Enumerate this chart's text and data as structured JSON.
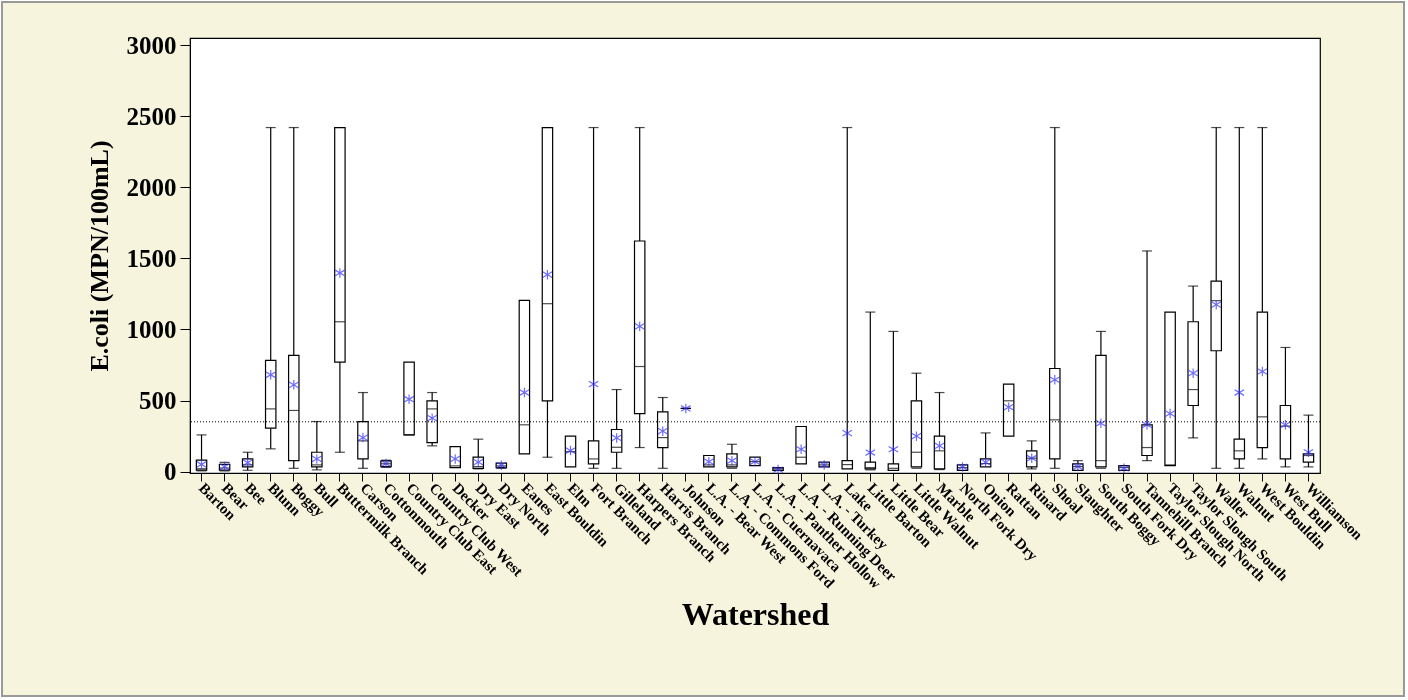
{
  "chart_data": {
    "type": "box",
    "xlabel": "Watershed",
    "ylabel": "E.coli (MPN/100mL)",
    "categories": [
      "Barton",
      "Bear",
      "Bee",
      "Blunn",
      "Boggy",
      "Bull",
      "Buttermilk Branch",
      "Carson",
      "Cottonmouth",
      "Country Club East",
      "Country Club West",
      "Decker",
      "Dry East",
      "Dry North",
      "Eanes",
      "East Bouldin",
      "Elm",
      "Fort Branch",
      "Gilleland",
      "Harpers Branch",
      "Harris Branch",
      "Johnson",
      "L.A. - Bear West",
      "L.A. - Commons Ford",
      "L.A. - Cuernavaca",
      "L.A. - Panther Hollow",
      "L.A. - Running Deer",
      "L.A. - Turkey",
      "Lake",
      "Little Barton",
      "Little Bear",
      "Little Walnut",
      "Marble",
      "North Fork Dry",
      "Onion",
      "Rattan",
      "Rinard",
      "Shoal",
      "Slaughter",
      "South Boggy",
      "South Fork Dry",
      "Tannehill Branch",
      "Taylor Slough North",
      "Taylor Slough South",
      "Waller",
      "Walnut",
      "West Bouldin",
      "West Bull",
      "Williamson"
    ],
    "color": "#000000",
    "boxes": [
      {
        "low": 5,
        "q1": 10,
        "median": 20,
        "q3": 80,
        "high": 258,
        "mean": 50
      },
      {
        "low": 5,
        "q1": 10,
        "median": 25,
        "q3": 50,
        "high": 65,
        "mean": 35
      },
      {
        "low": 9,
        "q1": 33,
        "median": 47,
        "q3": 89,
        "high": 136,
        "mean": 63
      },
      {
        "low": 160,
        "q1": 305,
        "median": 441,
        "q3": 782,
        "high": 2420,
        "mean": 681
      },
      {
        "low": 23,
        "q1": 77,
        "median": 430,
        "q3": 817,
        "high": 2420,
        "mean": 610
      },
      {
        "low": 12,
        "q1": 33,
        "median": 47,
        "q3": 136,
        "high": 352,
        "mean": 89
      },
      {
        "low": 136,
        "q1": 770,
        "median": 1054,
        "q3": 2420,
        "high": 2420,
        "mean": 1397
      },
      {
        "low": 23,
        "q1": 89,
        "median": 216,
        "q3": 352,
        "high": 556,
        "mean": 239
      },
      {
        "low": 30,
        "q1": 35,
        "median": 55,
        "q3": 75,
        "high": 80,
        "mean": 56
      },
      {
        "low": 258,
        "q1": 258,
        "median": 258,
        "q3": 770,
        "high": 770,
        "mean": 509
      },
      {
        "low": 181,
        "q1": 204,
        "median": 441,
        "q3": 498,
        "high": 556,
        "mean": 376
      },
      {
        "low": 28,
        "q1": 28,
        "median": 40,
        "q3": 176,
        "high": 176,
        "mean": 89
      },
      {
        "low": 19,
        "q1": 23,
        "median": 35,
        "q3": 101,
        "high": 228,
        "mean": 66
      },
      {
        "low": 23,
        "q1": 28,
        "median": 40,
        "q3": 59,
        "high": 59,
        "mean": 45
      },
      {
        "low": 124,
        "q1": 124,
        "median": 329,
        "q3": 1204,
        "high": 1204,
        "mean": 556
      },
      {
        "low": 101,
        "q1": 498,
        "median": 1181,
        "q3": 2420,
        "high": 2420,
        "mean": 1385
      },
      {
        "low": 33,
        "q1": 33,
        "median": 140,
        "q3": 249,
        "high": 249,
        "mean": 148
      },
      {
        "low": 23,
        "q1": 54,
        "median": 89,
        "q3": 216,
        "high": 2420,
        "mean": 615
      },
      {
        "low": 23,
        "q1": 136,
        "median": 171,
        "q3": 296,
        "high": 577,
        "mean": 237
      },
      {
        "low": 169,
        "q1": 408,
        "median": 739,
        "q3": 1622,
        "high": 2420,
        "mean": 1021
      },
      {
        "low": 23,
        "q1": 169,
        "median": 239,
        "q3": 420,
        "high": 521,
        "mean": 284
      },
      {
        "low": 444,
        "q1": 444,
        "median": 444,
        "q3": 444,
        "high": 444,
        "mean": 444
      },
      {
        "low": 33,
        "q1": 33,
        "median": 47,
        "q3": 113,
        "high": 113,
        "mean": 70
      },
      {
        "low": 23,
        "q1": 33,
        "median": 47,
        "q3": 124,
        "high": 192,
        "mean": 77
      },
      {
        "low": 42,
        "q1": 42,
        "median": 70,
        "q3": 101,
        "high": 101,
        "mean": 70
      },
      {
        "low": 9,
        "q1": 9,
        "median": 19,
        "q3": 28,
        "high": 28,
        "mean": 14
      },
      {
        "low": 54,
        "q1": 54,
        "median": 101,
        "q3": 317,
        "high": 317,
        "mean": 157
      },
      {
        "low": 33,
        "q1": 33,
        "median": 47,
        "q3": 66,
        "high": 66,
        "mean": 47
      },
      {
        "low": 19,
        "q1": 19,
        "median": 49,
        "q3": 77,
        "high": 2420,
        "mean": 270
      },
      {
        "low": 12,
        "q1": 19,
        "median": 28,
        "q3": 66,
        "high": 1122,
        "mean": 134
      },
      {
        "low": 9,
        "q1": 9,
        "median": 23,
        "q3": 54,
        "high": 986,
        "mean": 157
      },
      {
        "low": 23,
        "q1": 33,
        "median": 136,
        "q3": 498,
        "high": 692,
        "mean": 249
      },
      {
        "low": 14,
        "q1": 19,
        "median": 146,
        "q3": 249,
        "high": 556,
        "mean": 181
      },
      {
        "low": 9,
        "q1": 9,
        "median": 28,
        "q3": 47,
        "high": 47,
        "mean": 33
      },
      {
        "low": 33,
        "q1": 33,
        "median": 56,
        "q3": 89,
        "high": 272,
        "mean": 66
      },
      {
        "low": 249,
        "q1": 249,
        "median": 498,
        "q3": 615,
        "high": 615,
        "mean": 453
      },
      {
        "low": 19,
        "q1": 33,
        "median": 94,
        "q3": 146,
        "high": 216,
        "mean": 94
      },
      {
        "low": 23,
        "q1": 89,
        "median": 364,
        "q3": 725,
        "high": 2420,
        "mean": 646
      },
      {
        "low": 9,
        "q1": 9,
        "median": 35,
        "q3": 54,
        "high": 77,
        "mean": 35
      },
      {
        "low": 23,
        "q1": 33,
        "median": 77,
        "q3": 817,
        "high": 986,
        "mean": 340
      },
      {
        "low": 9,
        "q1": 9,
        "median": 28,
        "q3": 42,
        "high": 42,
        "mean": 23
      },
      {
        "low": 77,
        "q1": 113,
        "median": 169,
        "q3": 329,
        "high": 1552,
        "mean": 329
      },
      {
        "low": 42,
        "q1": 42,
        "median": 47,
        "q3": 1122,
        "high": 1122,
        "mean": 408
      },
      {
        "low": 237,
        "q1": 465,
        "median": 577,
        "q3": 1054,
        "high": 1305,
        "mean": 692
      },
      {
        "low": 23,
        "q1": 850,
        "median": 1202,
        "q3": 1340,
        "high": 2420,
        "mean": 1174
      },
      {
        "low": 23,
        "q1": 89,
        "median": 146,
        "q3": 228,
        "high": 2420,
        "mean": 556
      },
      {
        "low": 89,
        "q1": 169,
        "median": 385,
        "q3": 1122,
        "high": 2420,
        "mean": 704
      },
      {
        "low": 33,
        "q1": 89,
        "median": 320,
        "q3": 465,
        "high": 873,
        "mean": 329
      },
      {
        "low": 33,
        "q1": 66,
        "median": 113,
        "q3": 124,
        "high": 397,
        "mean": 136
      }
    ],
    "ylim": [
      -10,
      3050
    ],
    "yticks": [
      0,
      500,
      1000,
      1500,
      2000,
      2500,
      3000
    ],
    "grid": false,
    "ref_lines": [
      {
        "axis": "y",
        "value": 350,
        "color": "#000000",
        "line_style": "dotted"
      }
    ]
  }
}
